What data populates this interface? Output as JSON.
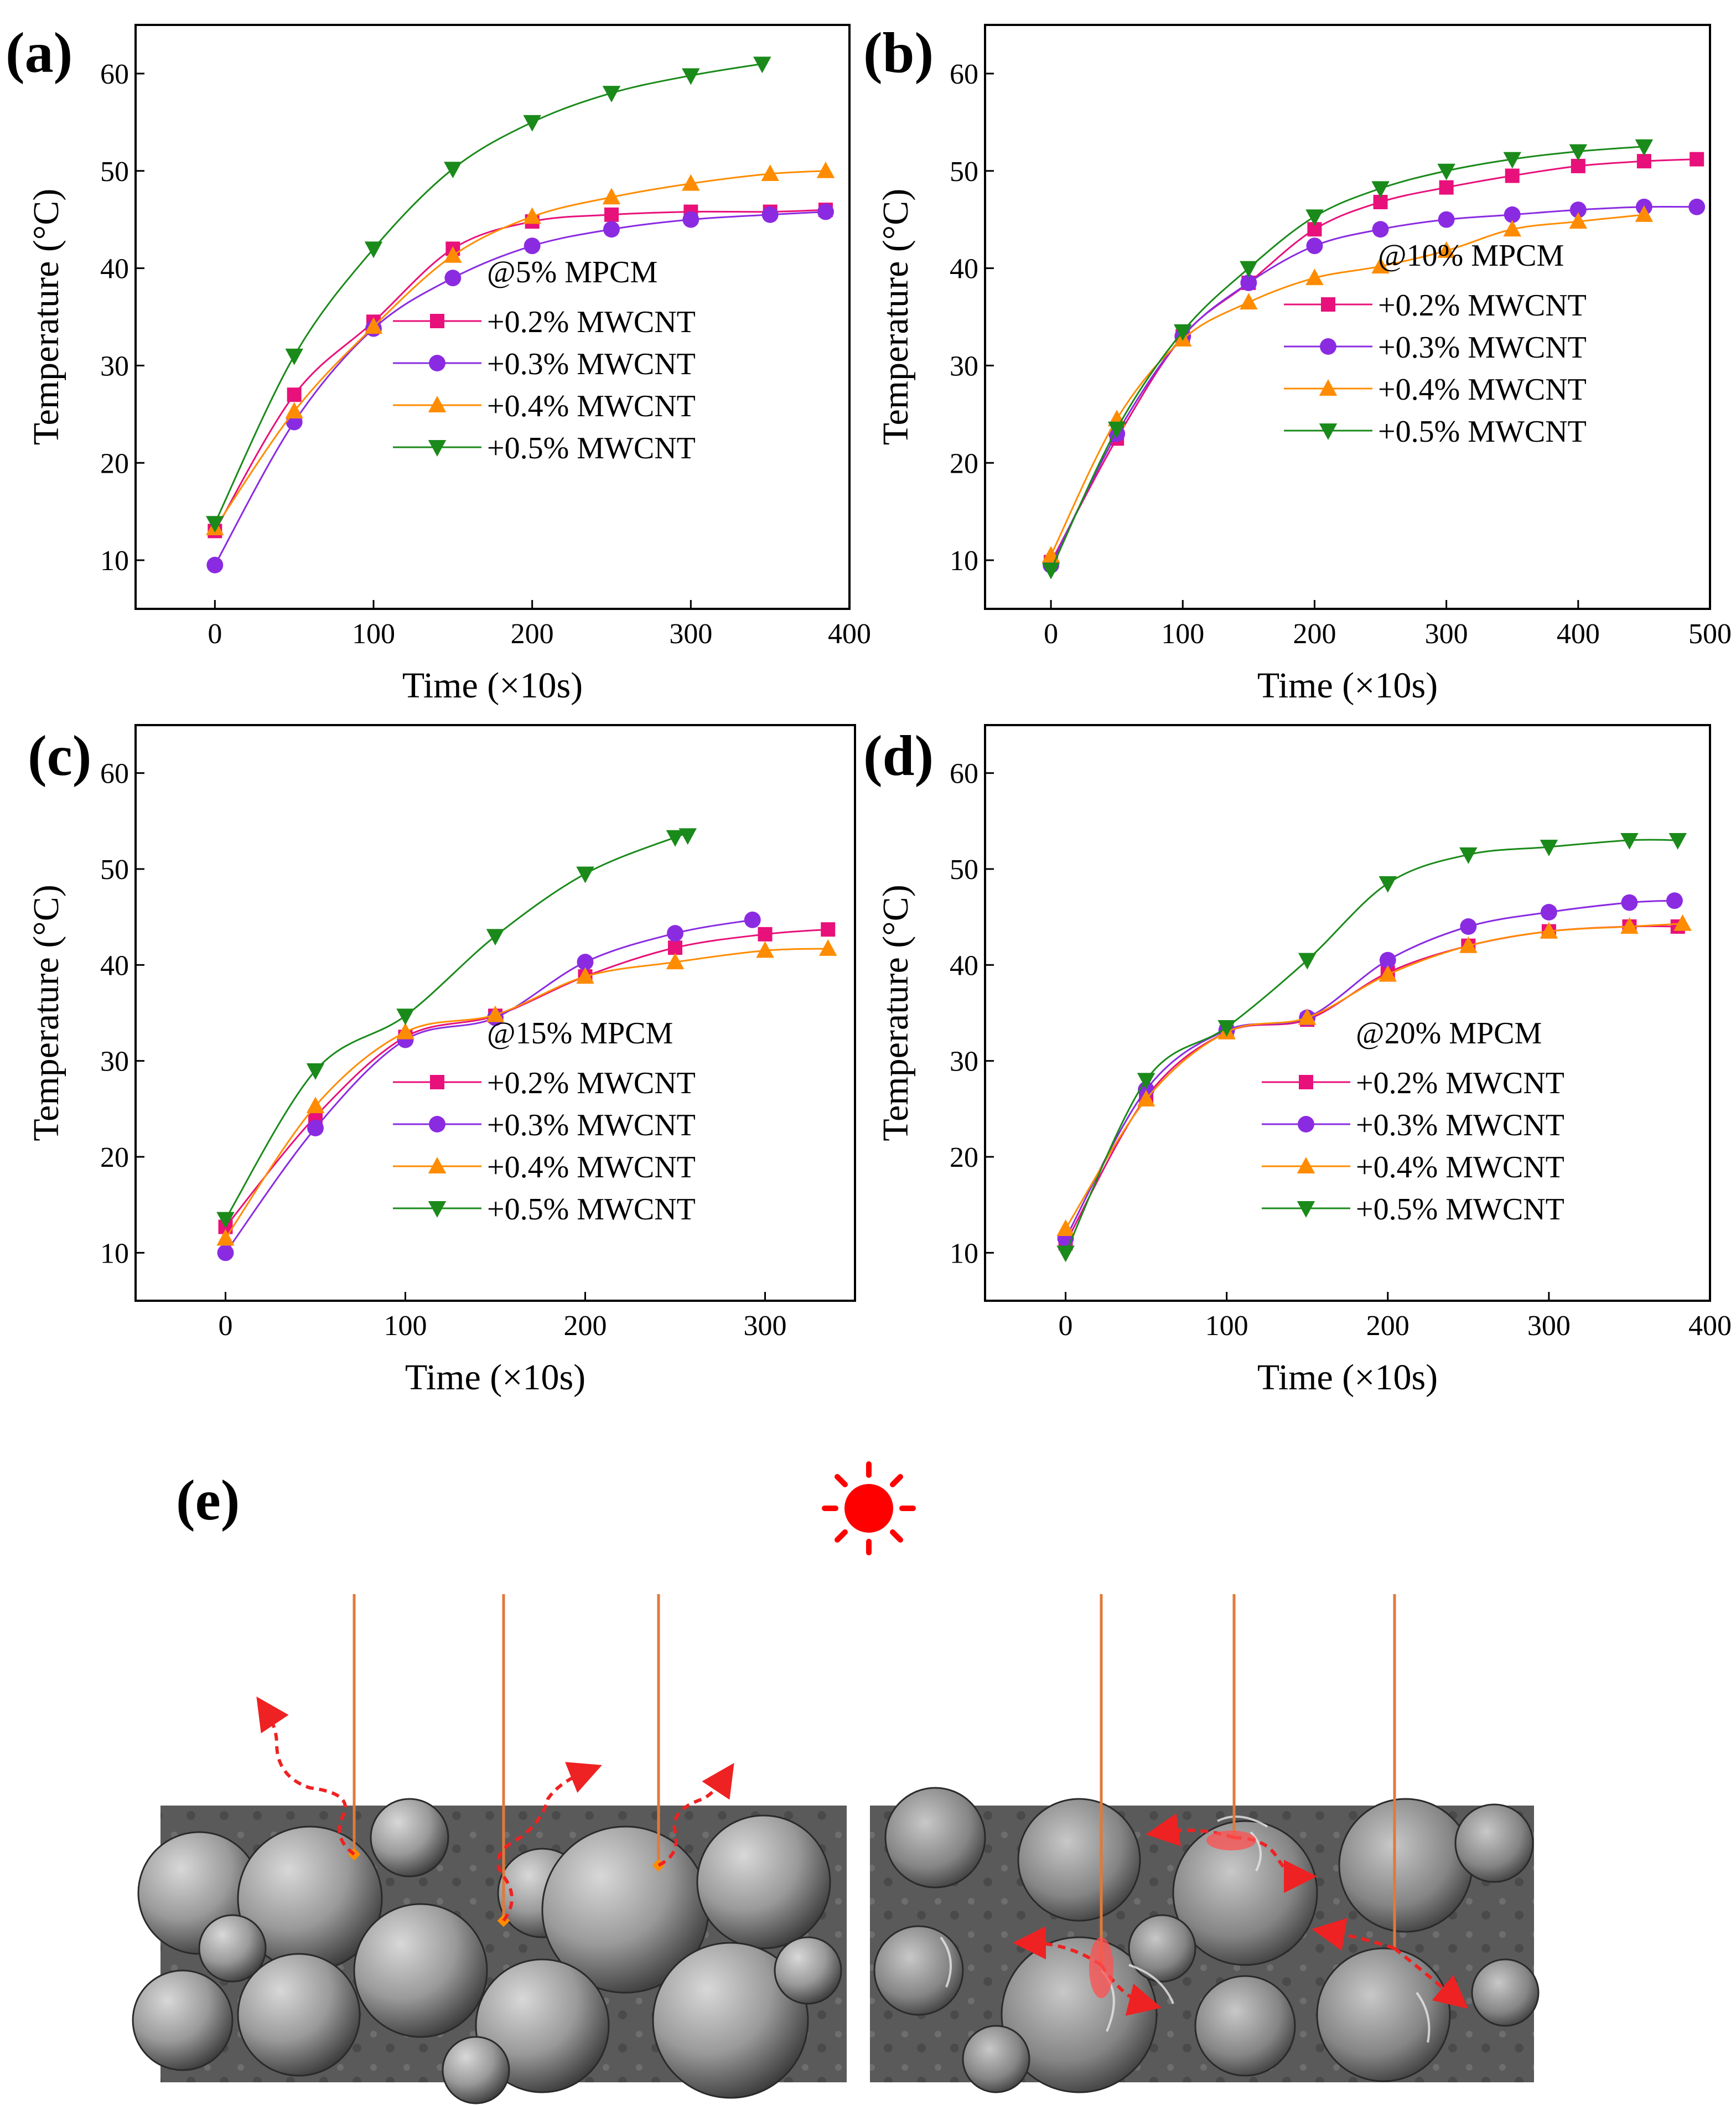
{
  "colors": {
    "s02": "#e8107a",
    "s03": "#8a2be2",
    "s04": "#ff8c00",
    "s05": "#1a8a1a",
    "sun": "#ff0000",
    "ray": "#e07a3a",
    "arrow": "#ee2222"
  },
  "chart_data": [
    {
      "panel": "(a)",
      "type": "line",
      "title": "@5% MPCM",
      "xlabel": "Time (×10s)",
      "ylabel": "Temperature (°C)",
      "xlim": [
        -50,
        400
      ],
      "ylim": [
        5,
        65
      ],
      "xticks": [
        0,
        100,
        200,
        300,
        400
      ],
      "yticks": [
        10,
        20,
        30,
        40,
        50,
        60
      ],
      "legend_loc": "center-right",
      "series": [
        {
          "name": "+0.2% MWCNT",
          "marker": "square",
          "x": [
            0,
            50,
            100,
            150,
            200,
            250,
            300,
            350,
            385
          ],
          "y": [
            13,
            27,
            34.5,
            42,
            44.8,
            45.5,
            45.8,
            45.8,
            46
          ]
        },
        {
          "name": "+0.3% MWCNT",
          "marker": "circle",
          "x": [
            0,
            50,
            100,
            150,
            200,
            250,
            300,
            350,
            385
          ],
          "y": [
            9.5,
            24.2,
            33.8,
            39,
            42.3,
            44,
            45,
            45.5,
            45.8
          ]
        },
        {
          "name": "+0.4% MWCNT",
          "marker": "triangle-up",
          "x": [
            0,
            50,
            100,
            150,
            200,
            250,
            300,
            350,
            385
          ],
          "y": [
            13.3,
            25.3,
            34,
            41.3,
            45.3,
            47.3,
            48.7,
            49.7,
            50
          ]
        },
        {
          "name": "+0.5% MWCNT",
          "marker": "triangle-down",
          "x": [
            0,
            50,
            100,
            150,
            200,
            250,
            300,
            345
          ],
          "y": [
            13.8,
            31,
            42,
            50.2,
            55,
            58,
            59.8,
            61
          ]
        }
      ]
    },
    {
      "panel": "(b)",
      "type": "line",
      "title": "@10% MPCM",
      "xlabel": "Time (×10s)",
      "ylabel": "Temperature (°C)",
      "xlim": [
        -50,
        500
      ],
      "ylim": [
        5,
        65
      ],
      "xticks": [
        0,
        100,
        200,
        300,
        400,
        500
      ],
      "yticks": [
        10,
        20,
        30,
        40,
        50,
        60
      ],
      "legend_loc": "center-right",
      "series": [
        {
          "name": "+0.2% MWCNT",
          "marker": "square",
          "x": [
            0,
            50,
            100,
            150,
            200,
            250,
            300,
            350,
            400,
            450,
            490
          ],
          "y": [
            9.8,
            22.5,
            33,
            38.5,
            44,
            46.8,
            48.3,
            49.5,
            50.5,
            51,
            51.2
          ]
        },
        {
          "name": "+0.3% MWCNT",
          "marker": "circle",
          "x": [
            0,
            50,
            100,
            150,
            200,
            250,
            300,
            350,
            400,
            450,
            490
          ],
          "y": [
            9.5,
            23,
            33,
            38.5,
            42.3,
            44,
            45,
            45.5,
            46,
            46.3,
            46.3
          ]
        },
        {
          "name": "+0.4% MWCNT",
          "marker": "triangle-up",
          "x": [
            0,
            50,
            100,
            150,
            200,
            250,
            300,
            350,
            400,
            450
          ],
          "y": [
            10.5,
            24.5,
            32.7,
            36.5,
            39,
            40.2,
            41.8,
            44,
            44.8,
            45.5
          ]
        },
        {
          "name": "+0.5% MWCNT",
          "marker": "triangle-down",
          "x": [
            0,
            50,
            100,
            150,
            200,
            250,
            300,
            350,
            400,
            450
          ],
          "y": [
            9,
            23.5,
            33.5,
            40,
            45.3,
            48.2,
            50,
            51.2,
            52,
            52.5
          ]
        }
      ]
    },
    {
      "panel": "(c)",
      "type": "line",
      "title": "@15% MPCM",
      "xlabel": "Time (×10s)",
      "ylabel": "Temperature (°C)",
      "xlim": [
        -50,
        350
      ],
      "ylim": [
        5,
        65
      ],
      "xticks": [
        0,
        100,
        200,
        300
      ],
      "yticks": [
        10,
        20,
        30,
        40,
        50,
        60
      ],
      "legend_loc": "lower-right",
      "series": [
        {
          "name": "+0.2% MWCNT",
          "marker": "square",
          "x": [
            0,
            50,
            100,
            150,
            200,
            250,
            300,
            335
          ],
          "y": [
            12.7,
            24.2,
            32.5,
            34.7,
            38.8,
            41.8,
            43.2,
            43.7
          ]
        },
        {
          "name": "+0.3% MWCNT",
          "marker": "circle",
          "x": [
            0,
            50,
            100,
            150,
            200,
            250,
            293
          ],
          "y": [
            10,
            23,
            32.2,
            34.5,
            40.3,
            43.3,
            44.7
          ]
        },
        {
          "name": "+0.4% MWCNT",
          "marker": "triangle-up",
          "x": [
            0,
            50,
            100,
            150,
            200,
            250,
            300,
            335
          ],
          "y": [
            11.5,
            25.3,
            33,
            34.8,
            38.8,
            40.3,
            41.5,
            41.7
          ]
        },
        {
          "name": "+0.5% MWCNT",
          "marker": "triangle-down",
          "x": [
            0,
            50,
            100,
            150,
            200,
            250,
            257
          ],
          "y": [
            13.5,
            29,
            34.7,
            43,
            49.5,
            53.3,
            53.5
          ]
        }
      ]
    },
    {
      "panel": "(d)",
      "type": "line",
      "title": "@20% MPCM",
      "xlabel": "Time (×10s)",
      "ylabel": "Temperature (°C)",
      "xlim": [
        -50,
        400
      ],
      "ylim": [
        5,
        65
      ],
      "xticks": [
        0,
        100,
        200,
        300,
        400
      ],
      "yticks": [
        10,
        20,
        30,
        40,
        50,
        60
      ],
      "legend_loc": "lower-right",
      "series": [
        {
          "name": "+0.2% MWCNT",
          "marker": "square",
          "x": [
            0,
            50,
            100,
            150,
            200,
            250,
            300,
            350,
            380
          ],
          "y": [
            11,
            26.2,
            33,
            34.3,
            39.2,
            42,
            43.5,
            44,
            44
          ]
        },
        {
          "name": "+0.3% MWCNT",
          "marker": "circle",
          "x": [
            0,
            50,
            100,
            150,
            200,
            250,
            300,
            350,
            378
          ],
          "y": [
            11.5,
            27,
            33.2,
            34.5,
            40.5,
            44,
            45.5,
            46.5,
            46.7
          ]
        },
        {
          "name": "+0.4% MWCNT",
          "marker": "triangle-up",
          "x": [
            0,
            50,
            100,
            150,
            200,
            250,
            300,
            350,
            383
          ],
          "y": [
            12.5,
            26,
            33,
            34.5,
            39,
            42,
            43.5,
            44,
            44.3
          ]
        },
        {
          "name": "+0.5% MWCNT",
          "marker": "triangle-down",
          "x": [
            0,
            50,
            100,
            150,
            200,
            250,
            300,
            350,
            380
          ],
          "y": [
            10,
            28,
            33.5,
            40.5,
            48.5,
            51.5,
            52.3,
            53,
            53
          ]
        }
      ]
    }
  ],
  "panel_e": {
    "label": "(e)",
    "left_image": "SEM micrograph of MPCM spheres: incident light reflected away",
    "right_image": "SEM micrograph with MWCNT: incident light absorbed and scattered internally"
  }
}
